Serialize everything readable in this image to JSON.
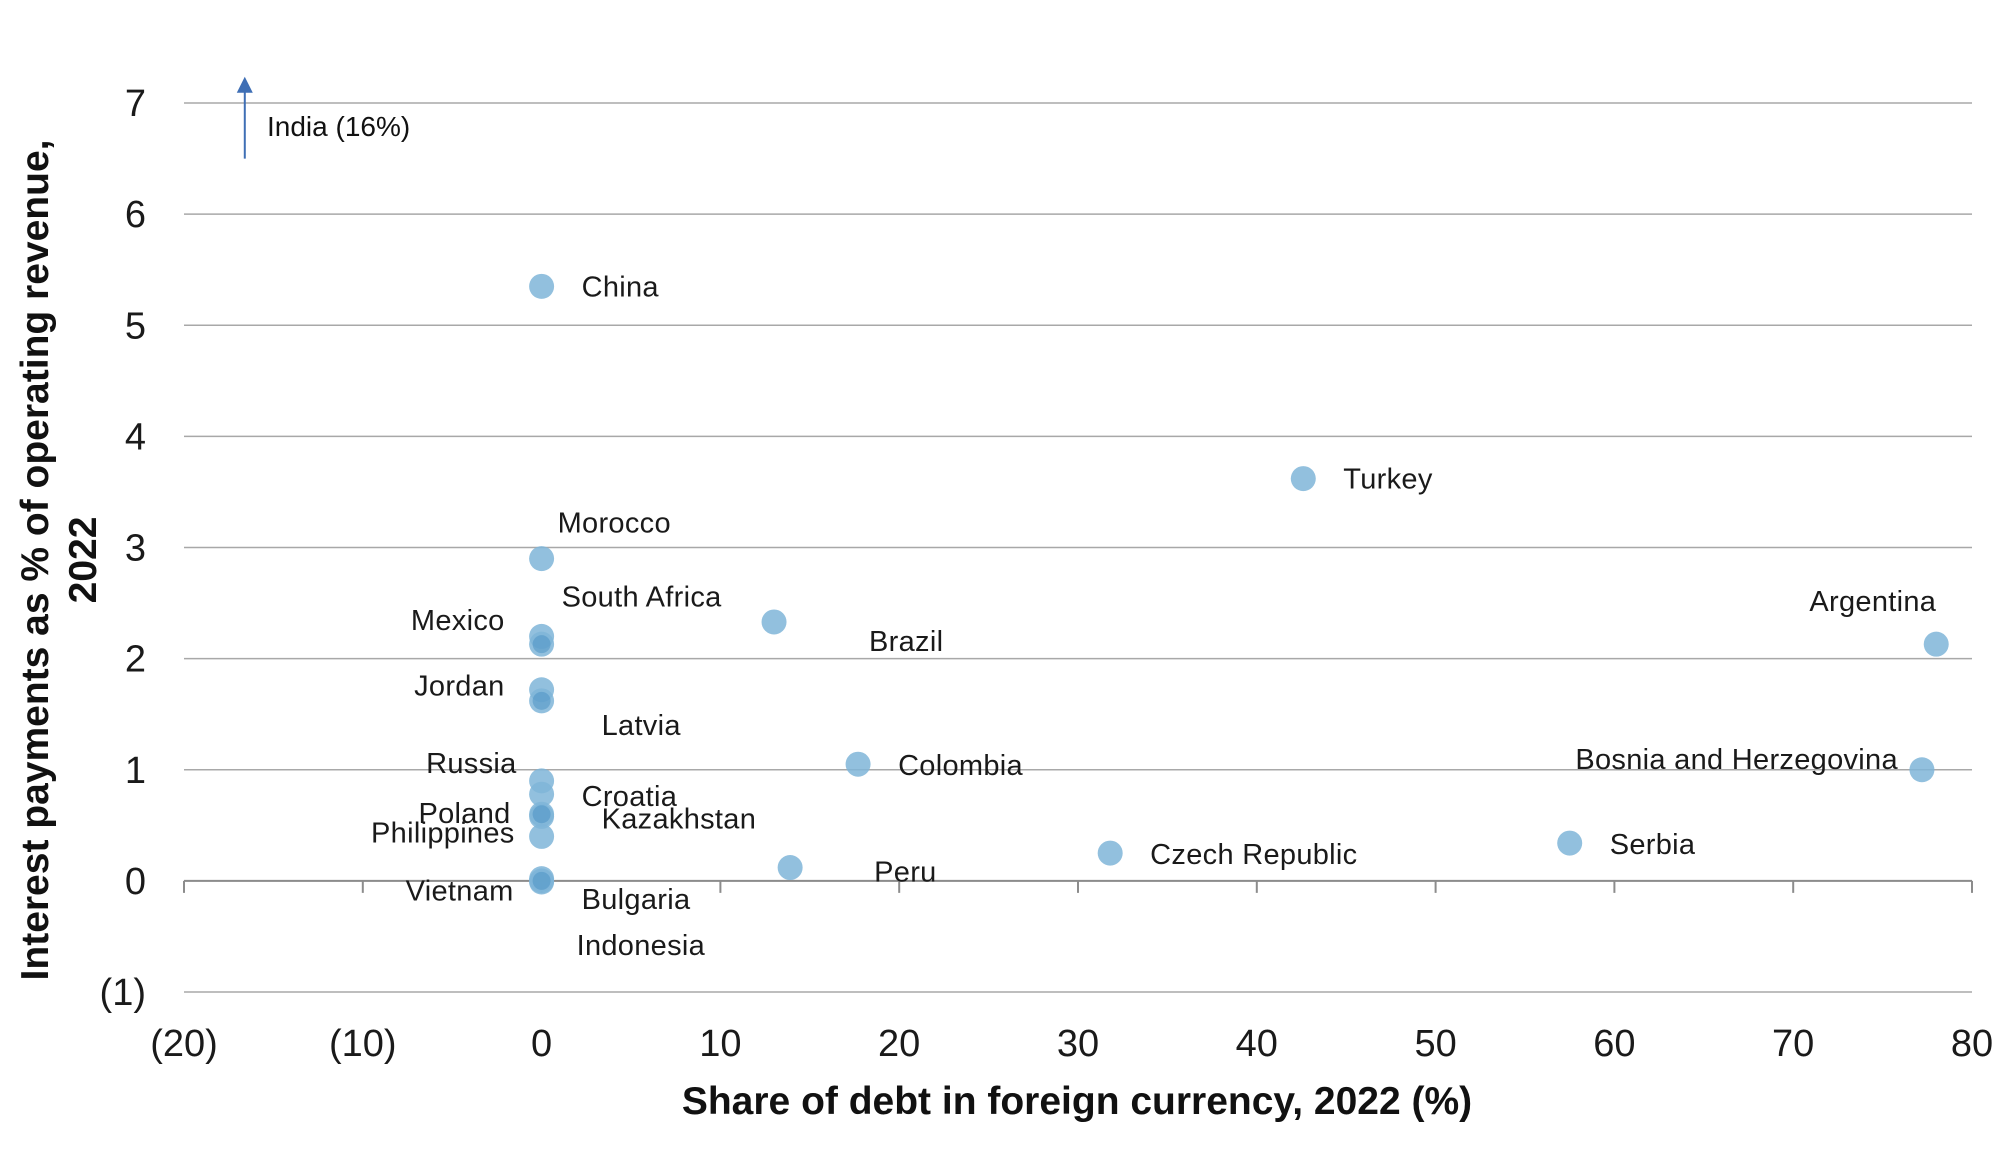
{
  "chart_data": {
    "type": "scatter",
    "xlabel": "Share of debt in foreign currency, 2022 (%)",
    "ylabel_line1": "Interest payments as % of operating revenue,",
    "ylabel_line2": "2022",
    "xlim": [
      -20,
      80
    ],
    "ylim": [
      -1,
      7
    ],
    "x_ticks": [
      -20,
      -10,
      0,
      10,
      20,
      30,
      40,
      50,
      60,
      70,
      80
    ],
    "x_tick_labels": [
      "(20)",
      "(10)",
      "0",
      "10",
      "20",
      "30",
      "40",
      "50",
      "60",
      "70",
      "80"
    ],
    "y_ticks": [
      -1,
      0,
      1,
      2,
      3,
      4,
      5,
      6,
      7
    ],
    "y_tick_labels": [
      "(1)",
      "0",
      "1",
      "2",
      "3",
      "4",
      "5",
      "6",
      "7"
    ],
    "grid": "horizontal",
    "point_color": "#7fb5d8",
    "point_color_dark": "#4e93c5",
    "arrow_color": "#3f6fb5",
    "annotation": {
      "label": "India (16%)",
      "x": -16.6,
      "direction": "up",
      "from_y": 6.5,
      "to_y": 7.2
    },
    "points": [
      {
        "label": "China",
        "x": 0,
        "y": 5.35
      },
      {
        "label": "Turkey",
        "x": 42.6,
        "y": 3.62
      },
      {
        "label": "Morocco",
        "x": 0,
        "y": 2.9
      },
      {
        "label": "South Africa",
        "x": 0,
        "y": 2.2
      },
      {
        "label": "Mexico",
        "x": 0,
        "y": 2.13
      },
      {
        "label": "Brazil",
        "x": 13.0,
        "y": 2.33
      },
      {
        "label": "Argentina",
        "x": 78.0,
        "y": 2.13
      },
      {
        "label": "Jordan",
        "x": 0,
        "y": 1.72
      },
      {
        "label": "Latvia",
        "x": 0,
        "y": 1.62
      },
      {
        "label": "Colombia",
        "x": 17.7,
        "y": 1.05
      },
      {
        "label": "Bosnia and Herzegovina",
        "x": 77.2,
        "y": 1.0
      },
      {
        "label": "Russia",
        "x": 0,
        "y": 0.9
      },
      {
        "label": "Croatia",
        "x": 0,
        "y": 0.78
      },
      {
        "label": "Poland",
        "x": 0,
        "y": 0.6
      },
      {
        "label": "Kazakhstan",
        "x": 0,
        "y": 0.58
      },
      {
        "label": "Philippines",
        "x": 0,
        "y": 0.4
      },
      {
        "label": "Serbia",
        "x": 57.5,
        "y": 0.34
      },
      {
        "label": "Czech Republic",
        "x": 31.8,
        "y": 0.25
      },
      {
        "label": "Peru",
        "x": 13.9,
        "y": 0.12
      },
      {
        "label": "Vietnam",
        "x": 0,
        "y": 0.02
      },
      {
        "label": "Bulgaria",
        "x": 0,
        "y": 0.0
      },
      {
        "label": "Indonesia",
        "x": 0,
        "y": -0.01
      }
    ]
  }
}
